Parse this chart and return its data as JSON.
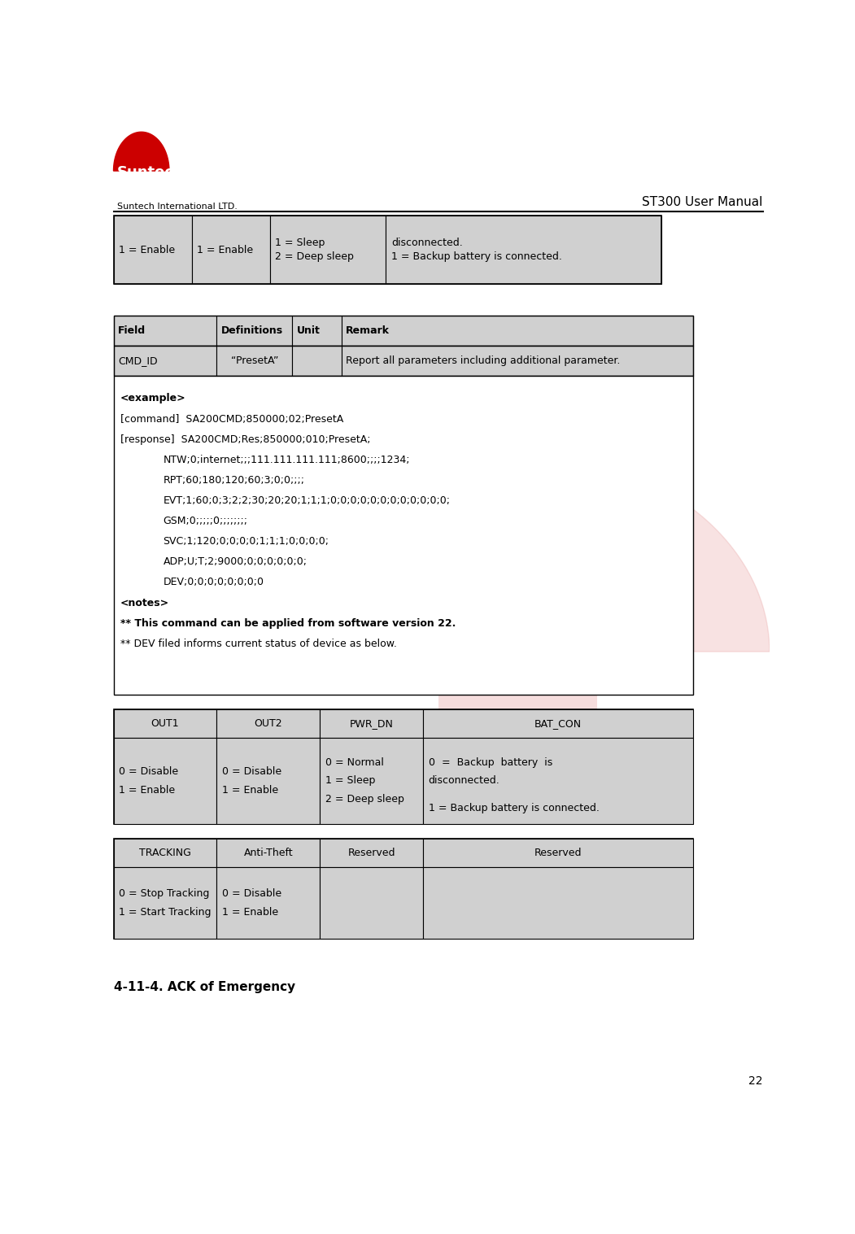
{
  "page_num": "22",
  "header_company": "Suntech International LTD.",
  "header_title": "ST300 User Manual",
  "bg_color": "#ffffff",
  "cell_bg_gray": "#d0d0d0",
  "border_color": "#000000",
  "top_table_cells": [
    "1 = Enable",
    "1 = Enable",
    "1 = Sleep\n\n2 = Deep sleep",
    "disconnected.\n\n1 = Backup battery is connected."
  ],
  "main_table_header": [
    "Field",
    "Definitions",
    "Unit",
    "Remark"
  ],
  "main_table_row": [
    "CMD_ID",
    "“PresetA”",
    "",
    "Report all parameters including additional parameter."
  ],
  "example_lines": [
    {
      "text": "<example>",
      "bold": true,
      "indent": 0
    },
    {
      "text": "[command]  SA200CMD;850000;02;PresetA",
      "bold": false,
      "indent": 0
    },
    {
      "text": "[response]  SA200CMD;Res;850000;010;PresetA;",
      "bold": false,
      "indent": 0
    },
    {
      "text": "NTW;0;internet;;;111.111.111.111;8600;;;;1234;",
      "bold": false,
      "indent": 1
    },
    {
      "text": "RPT;60;180;120;60;3;0;0;;;;",
      "bold": false,
      "indent": 1
    },
    {
      "text": "EVT;1;60;0;3;2;2;30;20;20;1;1;1;0;0;0;0;0;0;0;0;0;0;0;0;",
      "bold": false,
      "indent": 1
    },
    {
      "text": "GSM;0;;;;;0;;;;;;;;",
      "bold": false,
      "indent": 1
    },
    {
      "text": "SVC;1;120;0;0;0;0;1;1;1;0;0;0;0;",
      "bold": false,
      "indent": 1
    },
    {
      "text": "ADP;U;T;2;9000;0;0;0;0;0;0;",
      "bold": false,
      "indent": 1
    },
    {
      "text": "DEV;0;0;0;0;0;0;0;0",
      "bold": false,
      "indent": 1
    },
    {
      "text": "<notes>",
      "bold": true,
      "indent": 0
    },
    {
      "text": "** This command can be applied from software version 22.",
      "bold": true,
      "indent": 0
    },
    {
      "text": "** DEV filed informs current status of device as below.",
      "bold": false,
      "indent": 0
    }
  ],
  "dev_table_headers": [
    "OUT1",
    "OUT2",
    "PWR_DN",
    "BAT_CON"
  ],
  "dev_table_cells": [
    "0 = Disable\n1 = Enable",
    "0 = Disable\n1 = Enable",
    "0 = Normal\n1 = Sleep\n2 = Deep sleep",
    "0  =  Backup  battery  is\ndisconnected.\n\n1 = Backup battery is connected."
  ],
  "bottom_table_headers": [
    "TRACKING",
    "Anti-Theft",
    "Reserved",
    "Reserved"
  ],
  "bottom_table_cells": [
    "0 = Stop Tracking\n1 = Start Tracking",
    "0 = Disable\n1 = Enable",
    "",
    ""
  ],
  "section_title": "4-11-4. ACK of Emergency",
  "watermark_color": "#e8a0a0"
}
